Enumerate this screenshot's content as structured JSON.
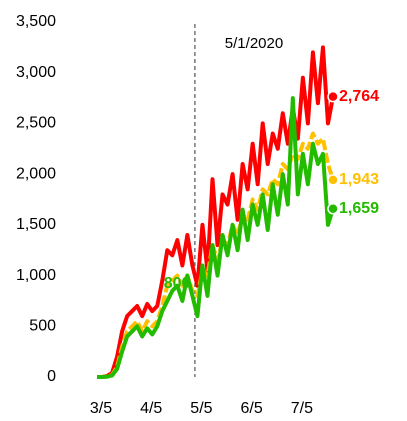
{
  "chart_data": {
    "type": "line",
    "annotation": "5/1/2020",
    "categories": [
      "3/5",
      null,
      null,
      null,
      null,
      null,
      null,
      null,
      null,
      null,
      "4/5",
      null,
      null,
      null,
      null,
      null,
      null,
      null,
      null,
      null,
      "5/5",
      null,
      null,
      null,
      null,
      null,
      null,
      null,
      null,
      null,
      "6/5",
      null,
      null,
      null,
      null,
      null,
      null,
      null,
      null,
      null,
      "7/5",
      null,
      null,
      null,
      null,
      null,
      null,
      null
    ],
    "series": [
      {
        "color": "#ff0000",
        "values": [
          0,
          0,
          10,
          40,
          200,
          450,
          600,
          650,
          700,
          600,
          720,
          650,
          700,
          950,
          1250,
          1200,
          1350,
          1100,
          1400,
          1100,
          900,
          1500,
          1050,
          1950,
          1300,
          1800,
          1700,
          2000,
          1550,
          2100,
          1850,
          2300,
          1900,
          2500,
          2100,
          2400,
          2250,
          2600,
          2300,
          2650,
          2350,
          2950,
          2500,
          3200,
          2700,
          3250,
          2500,
          2764
        ],
        "value_labels": [
          null,
          null,
          null,
          null,
          null,
          null,
          null,
          null,
          null,
          null,
          null,
          null,
          null,
          null,
          null,
          null,
          null,
          null,
          null,
          null,
          null,
          null,
          null,
          null,
          null,
          null,
          null,
          null,
          null,
          null,
          null,
          null,
          null,
          null,
          null,
          null,
          null,
          null,
          null,
          null,
          null,
          null,
          null,
          null,
          null,
          null,
          null,
          "2,764"
        ]
      },
      {
        "color": "#ffc000",
        "values": [
          0,
          0,
          5,
          20,
          100,
          300,
          450,
          500,
          550,
          450,
          550,
          500,
          550,
          700,
          900,
          950,
          1000,
          900,
          1000,
          850,
          800,
          1050,
          1000,
          1300,
          1150,
          1350,
          1300,
          1500,
          1400,
          1600,
          1550,
          1750,
          1650,
          1850,
          1800,
          1950,
          1900,
          2100,
          2050,
          2200,
          2150,
          2300,
          2250,
          2400,
          2300,
          2350,
          2100,
          1943
        ],
        "value_labels": [
          null,
          null,
          null,
          null,
          null,
          null,
          null,
          null,
          null,
          null,
          null,
          null,
          null,
          null,
          null,
          null,
          null,
          null,
          null,
          null,
          null,
          null,
          null,
          null,
          null,
          null,
          null,
          null,
          null,
          null,
          null,
          null,
          null,
          null,
          null,
          null,
          null,
          null,
          null,
          null,
          null,
          null,
          null,
          null,
          null,
          null,
          null,
          "1,943"
        ]
      },
      {
        "color": "#22bb00",
        "values": [
          0,
          0,
          3,
          15,
          80,
          250,
          400,
          450,
          500,
          400,
          480,
          420,
          500,
          650,
          750,
          850,
          900,
          750,
          1000,
          800,
          600,
          1100,
          800,
          1300,
          1000,
          1400,
          1200,
          1500,
          1250,
          1650,
          1350,
          1700,
          1500,
          1800,
          1450,
          1900,
          1600,
          2000,
          1700,
          2750,
          1800,
          2200,
          1900,
          2300,
          2100,
          2200,
          1500,
          1659
        ],
        "value_labels": [
          null,
          null,
          null,
          null,
          null,
          null,
          null,
          null,
          null,
          null,
          null,
          null,
          null,
          null,
          null,
          null,
          null,
          null,
          null,
          "800",
          null,
          null,
          null,
          null,
          null,
          null,
          null,
          null,
          null,
          null,
          null,
          null,
          null,
          null,
          null,
          null,
          null,
          null,
          null,
          null,
          null,
          null,
          null,
          null,
          null,
          null,
          null,
          "1,659"
        ]
      }
    ],
    "ylim": [
      0,
      3500
    ],
    "yticks": [
      0,
      500,
      {
        "value": 1000,
        "label": "1,000"
      },
      {
        "value": 1500,
        "label": "1,500"
      },
      {
        "value": 2000,
        "label": "2,000"
      },
      {
        "value": 2500,
        "label": "2,500"
      },
      {
        "value": 3000,
        "label": "3,000"
      },
      {
        "value": 3500,
        "label": "3,500"
      }
    ]
  }
}
